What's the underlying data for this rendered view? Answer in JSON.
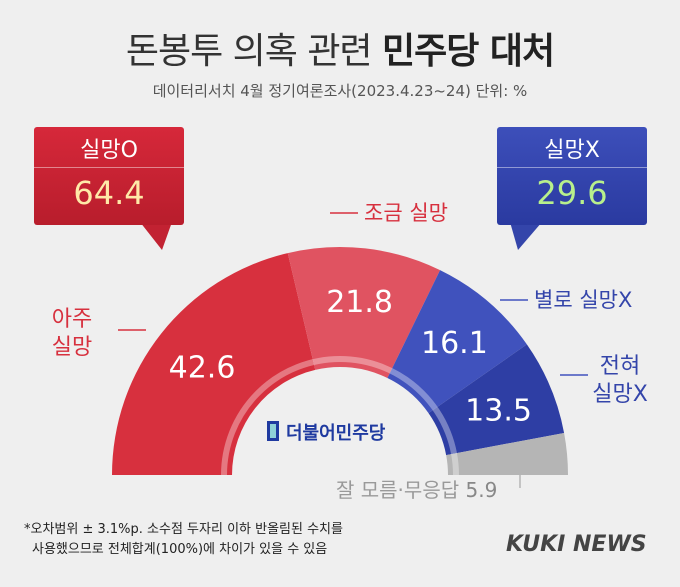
{
  "title_normal": "돈봉투 의혹 관련",
  "title_bold": "민주당 대처",
  "subtitle": "데이터리서치 4월 정기여론조사(2023.4.23~24) 단위: %",
  "summary": {
    "disappointed_label": "실망O",
    "disappointed_value": "64.4",
    "not_disappointed_label": "실망X",
    "not_disappointed_value": "29.6"
  },
  "chart_data": {
    "type": "pie",
    "categories": [
      "아주 실망",
      "조금 실망",
      "별로 실망X",
      "전혀 실망X",
      "잘 모름·무응답"
    ],
    "values": [
      42.6,
      21.8,
      16.1,
      13.5,
      5.9
    ],
    "colors": [
      "#d7303e",
      "#e05361",
      "#4052bd",
      "#2e3ea4",
      "#b5b5b5"
    ],
    "semicircle": true,
    "center_logo": "더불어민주당"
  },
  "labels": {
    "very": [
      "아주",
      "실망"
    ],
    "slightly": "조금 실망",
    "not_much": "별로 실망X",
    "not_at_all": [
      "전혀",
      "실망X"
    ],
    "dont_know": "잘 모름·무응답"
  },
  "footnote": {
    "line1": "*오차범위 ± 3.1%p. 소수점 두자리 이하 반올림된 수치를",
    "line2": "사용했으므로 전체합계(100%)에 차이가 있을 수 있음"
  },
  "brand": "KUKI NEWS"
}
